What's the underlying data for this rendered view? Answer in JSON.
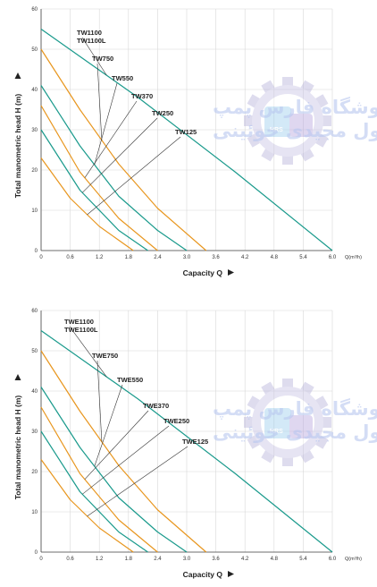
{
  "chart_data": [
    {
      "type": "line",
      "xlabel": "Capacity  Q",
      "ylabel": "Total manometric head H (m)",
      "x_unit_label": "Q(m³/h)",
      "xlim": [
        0,
        6.0
      ],
      "ylim": [
        0,
        60
      ],
      "x_ticks": [
        "0",
        "0.6",
        "1.2",
        "1.8",
        "2.4",
        "3.0",
        "3.6",
        "4.2",
        "4.8",
        "5.4",
        "6.0"
      ],
      "y_ticks": [
        "0",
        "10",
        "20",
        "30",
        "40",
        "50",
        "60"
      ],
      "grid": true,
      "series": [
        {
          "name": "TW1100 / TW1100L",
          "color": "#1a9a8c",
          "x": [
            0,
            2.0,
            4.0,
            6.0
          ],
          "y": [
            55,
            38,
            19.5,
            0
          ]
        },
        {
          "name": "TW750",
          "color": "#e8961e",
          "x": [
            0,
            0.8,
            1.6,
            2.4,
            3.4
          ],
          "y": [
            50,
            35,
            21.5,
            10.5,
            0
          ]
        },
        {
          "name": "TW550",
          "color": "#1a9a8c",
          "x": [
            0,
            0.8,
            1.6,
            2.4,
            3.0
          ],
          "y": [
            41,
            26,
            13.5,
            5,
            0
          ]
        },
        {
          "name": "TW370",
          "color": "#e8961e",
          "x": [
            0,
            0.8,
            1.6,
            2.4
          ],
          "y": [
            36,
            19.5,
            8,
            0
          ]
        },
        {
          "name": "TW250",
          "color": "#1a9a8c",
          "x": [
            0,
            0.8,
            1.6,
            2.2
          ],
          "y": [
            30,
            15,
            5,
            0
          ]
        },
        {
          "name": "TW125",
          "color": "#e8961e",
          "x": [
            0,
            0.6,
            1.2,
            1.9
          ],
          "y": [
            23,
            13,
            6,
            0
          ]
        }
      ],
      "labels": [
        "TW1100",
        "TW1100L",
        "TW750",
        "TW550",
        "TW370",
        "TW250",
        "TW125"
      ]
    },
    {
      "type": "line",
      "xlabel": "Capacity  Q",
      "ylabel": "Total manometric head H (m)",
      "x_unit_label": "Q(m³/h)",
      "xlim": [
        0,
        6.0
      ],
      "ylim": [
        0,
        60
      ],
      "x_ticks": [
        "0",
        "0.6",
        "1.2",
        "1.8",
        "2.4",
        "3.0",
        "3.6",
        "4.2",
        "4.8",
        "5.4",
        "6.0"
      ],
      "y_ticks": [
        "0",
        "10",
        "20",
        "30",
        "40",
        "50",
        "60"
      ],
      "grid": true,
      "series": [
        {
          "name": "TWE1100 / TWE1100L",
          "color": "#1a9a8c",
          "x": [
            0,
            2.0,
            4.0,
            6.0
          ],
          "y": [
            55,
            38,
            19.5,
            0
          ]
        },
        {
          "name": "TWE750",
          "color": "#e8961e",
          "x": [
            0,
            0.8,
            1.6,
            2.4,
            3.4
          ],
          "y": [
            50,
            35,
            21.5,
            10.5,
            0
          ]
        },
        {
          "name": "TWE550",
          "color": "#1a9a8c",
          "x": [
            0,
            0.8,
            1.6,
            2.4,
            3.0
          ],
          "y": [
            41,
            26,
            13.5,
            5,
            0
          ]
        },
        {
          "name": "TWE370",
          "color": "#e8961e",
          "x": [
            0,
            0.8,
            1.6,
            2.4
          ],
          "y": [
            36,
            19.5,
            8,
            0
          ]
        },
        {
          "name": "TWE250",
          "color": "#1a9a8c",
          "x": [
            0,
            0.8,
            1.6,
            2.2
          ],
          "y": [
            30,
            15,
            5,
            0
          ]
        },
        {
          "name": "TWE125",
          "color": "#e8961e",
          "x": [
            0,
            0.6,
            1.2,
            1.9
          ],
          "y": [
            23,
            13,
            6,
            0
          ]
        }
      ],
      "labels": [
        "TWE1100",
        "TWE1100L",
        "TWE750",
        "TWE550",
        "TWE370",
        "TWE250",
        "TWE125"
      ]
    }
  ],
  "watermark": {
    "line1": "فروشگاه فارس پمپ",
    "line2": "رسول مجیدی خوئینی",
    "logo_text": "RRS"
  }
}
